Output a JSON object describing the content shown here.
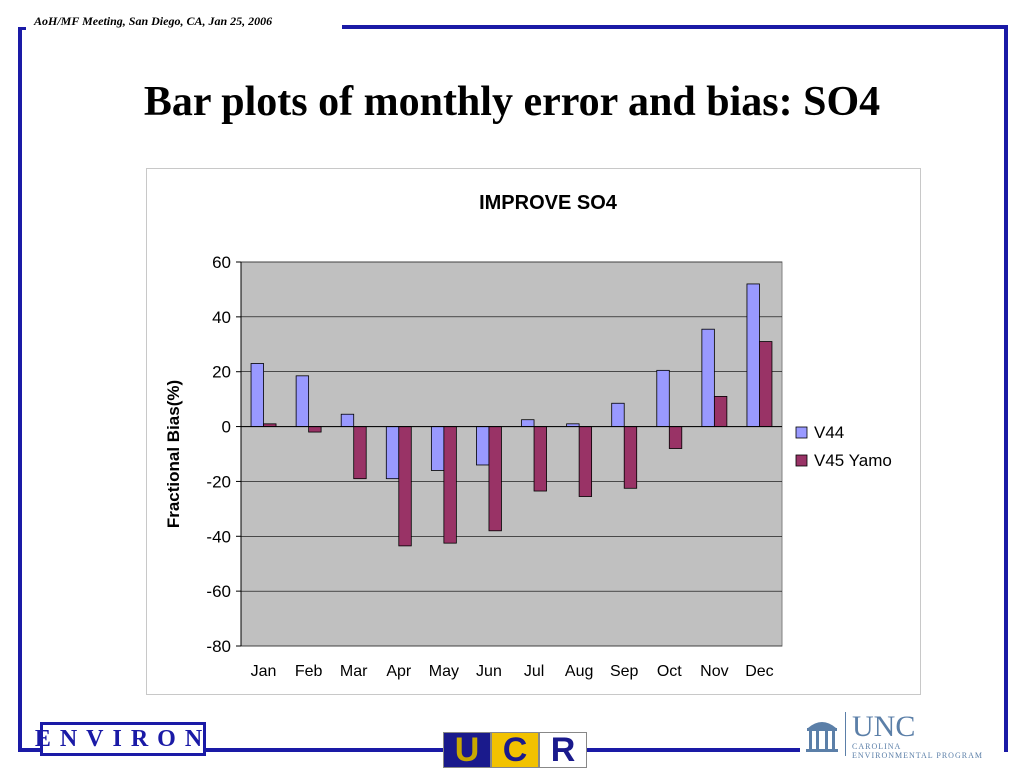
{
  "header": {
    "meeting_note": "AoH/MF Meeting, San Diego, CA,  Jan 25, 2006"
  },
  "slide": {
    "title": "Bar plots of monthly error and bias: SO4"
  },
  "colors": {
    "frame": "#1a1aa6",
    "plot_bg": "#c0c0c0",
    "series_v44": "#9999ff",
    "series_v45": "#993366"
  },
  "chart_data": {
    "type": "bar",
    "title": "IMPROVE SO4",
    "xlabel": "",
    "ylabel": "Fractional Bias(%)",
    "ylim": [
      -80,
      60
    ],
    "yticks": [
      60,
      40,
      20,
      0,
      -20,
      -40,
      -60,
      -80
    ],
    "grid": true,
    "legend_position": "right",
    "categories": [
      "Jan",
      "Feb",
      "Mar",
      "Apr",
      "May",
      "Jun",
      "Jul",
      "Aug",
      "Sep",
      "Oct",
      "Nov",
      "Dec"
    ],
    "series": [
      {
        "name": "V44",
        "color": "#9999ff",
        "values": [
          23,
          18.5,
          4.5,
          -19,
          -16,
          -14,
          2.5,
          1,
          8.5,
          20.5,
          35.5,
          52
        ]
      },
      {
        "name": "V45 Yamo",
        "color": "#993366",
        "values": [
          1,
          -2,
          -19,
          -43.5,
          -42.5,
          -38,
          -23.5,
          -25.5,
          -22.5,
          -8,
          11,
          31
        ]
      }
    ]
  },
  "logos": {
    "environ": "ENVIRON",
    "ucr": [
      "U",
      "C",
      "R"
    ],
    "unc": "UNC",
    "unc_sub": [
      "CAROLINA",
      "ENVIRONMENTAL PROGRAM"
    ]
  }
}
